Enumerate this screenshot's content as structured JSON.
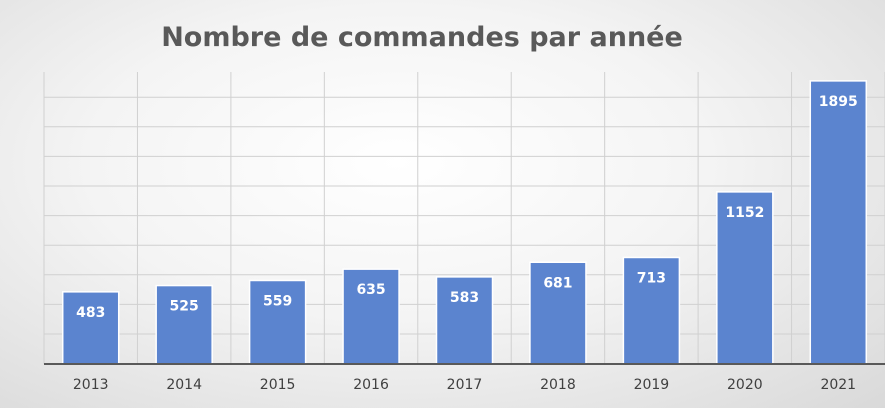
{
  "chart_data": {
    "type": "bar",
    "title": "Nombre de commandes par année",
    "xlabel": "",
    "ylabel": "",
    "categories": [
      "2013",
      "2014",
      "2015",
      "2016",
      "2017",
      "2018",
      "2019",
      "2020",
      "2021"
    ],
    "values": [
      483,
      525,
      559,
      635,
      583,
      681,
      713,
      1152,
      1895
    ],
    "ylim": [
      0,
      2000
    ],
    "grid": true,
    "legend": "none",
    "bar_color": "#5b84cf",
    "label_color": "#ffffff"
  }
}
